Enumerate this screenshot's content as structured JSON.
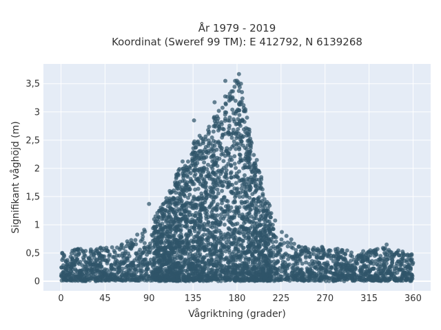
{
  "chart_data": {
    "type": "scatter",
    "title": "År 1979 - 2019",
    "subtitle": "Koordinat (Sweref 99 TM): E 412792, N 6139268",
    "xlabel": "Vågriktning (grader)",
    "ylabel": "Signifikant våghöjd (m)",
    "xlim": [
      -18,
      378
    ],
    "ylim": [
      -0.17,
      3.85
    ],
    "xticks": [
      0,
      45,
      90,
      135,
      180,
      225,
      270,
      315,
      360
    ],
    "xtick_labels": [
      "0",
      "45",
      "90",
      "135",
      "180",
      "225",
      "270",
      "315",
      "360"
    ],
    "yticks": [
      0,
      0.5,
      1,
      1.5,
      2,
      2.5,
      3,
      3.5
    ],
    "ytick_labels": [
      "0",
      "0,5",
      "1",
      "1,5",
      "2",
      "2,5",
      "3",
      "3,5"
    ],
    "grid": true,
    "legend": "none",
    "x_range_of_data": [
      0,
      360
    ],
    "envelope": {
      "description_points_direction_deg": [
        0,
        30,
        60,
        75,
        90,
        105,
        120,
        135,
        150,
        165,
        180,
        195,
        210,
        225,
        240,
        270,
        300,
        330,
        360
      ],
      "max_height_m": [
        0.55,
        0.6,
        0.65,
        0.8,
        1.0,
        1.4,
        2.0,
        2.5,
        2.7,
        3.2,
        3.65,
        2.6,
        1.5,
        0.9,
        0.7,
        0.6,
        0.55,
        0.6,
        0.5
      ]
    },
    "notable_outliers": [
      {
        "x": 182,
        "y": 3.67
      },
      {
        "x": 178,
        "y": 3.55
      },
      {
        "x": 184,
        "y": 3.5
      },
      {
        "x": 168,
        "y": 3.55
      },
      {
        "x": 185,
        "y": 3.35
      },
      {
        "x": 157,
        "y": 3.17
      },
      {
        "x": 172,
        "y": 3.2
      },
      {
        "x": 136,
        "y": 2.85
      },
      {
        "x": 90,
        "y": 1.37
      },
      {
        "x": 333,
        "y": 0.65
      }
    ],
    "marker_color": "#2f5469"
  }
}
